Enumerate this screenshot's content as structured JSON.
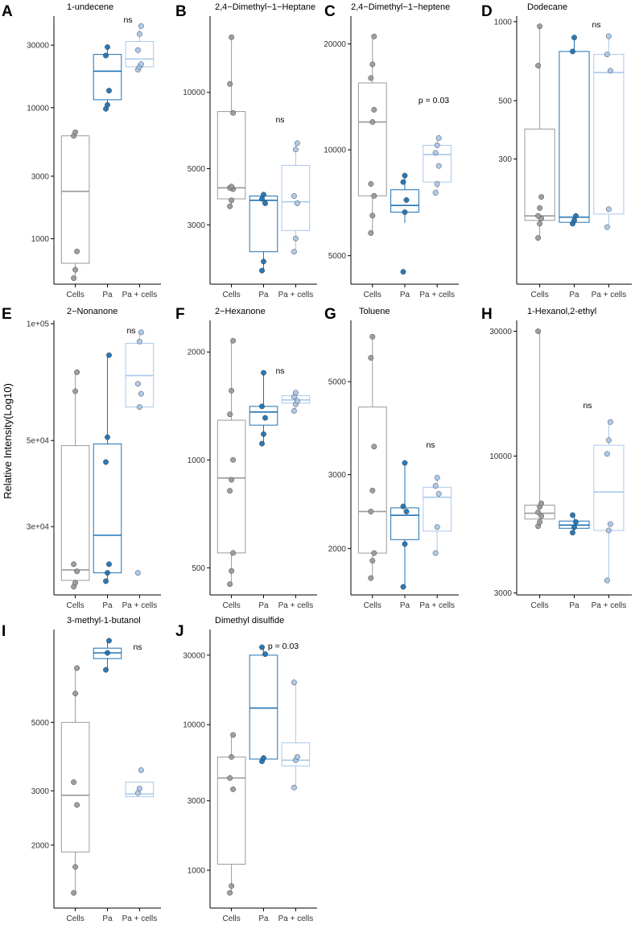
{
  "figure": {
    "ylabel": "Relative Intensity(Log10)",
    "groups": [
      "Cells",
      "Pa",
      "Pa + cells"
    ],
    "colors": {
      "Cells": "#9a9a9a",
      "Pa": "#1f72b4",
      "Pa + cells": "#a9c8ea",
      "axis": "#000000"
    }
  },
  "chart_data": [
    {
      "type": "box",
      "letter": "A",
      "title": "1-undecene",
      "scale": "log",
      "ylim": [
        450,
        50000
      ],
      "yticks": [
        1000,
        3000,
        10000,
        30000
      ],
      "ytick_labels": [
        "1000",
        "3000",
        "10000",
        "30000"
      ],
      "annotation": "ns",
      "boxes": [
        {
          "group": "Cells",
          "q1": 650,
          "median": 2300,
          "q3": 6100,
          "wmin": 500,
          "wmax": 6500,
          "points": [
            500,
            580,
            800,
            6100,
            6500
          ]
        },
        {
          "group": "Pa",
          "q1": 11500,
          "median": 19000,
          "q3": 25500,
          "wmin": 9800,
          "wmax": 29000,
          "points": [
            9800,
            10500,
            13500,
            25000,
            29000
          ]
        },
        {
          "group": "Pa + cells",
          "q1": 20500,
          "median": 23500,
          "q3": 32000,
          "wmin": 19500,
          "wmax": 42000,
          "points": [
            19500,
            20500,
            21500,
            27500,
            36500,
            42000
          ]
        }
      ]
    },
    {
      "type": "box",
      "letter": "B",
      "title": "2,4−Dimethyl−1−Heptane",
      "scale": "log",
      "ylim": [
        1750,
        20000
      ],
      "yticks": [
        3000,
        5000,
        10000
      ],
      "ytick_labels": [
        "3000",
        "5000",
        "10000"
      ],
      "annotation": "ns",
      "boxes": [
        {
          "group": "Cells",
          "q1": 3800,
          "median": 4200,
          "q3": 8400,
          "wmin": 3550,
          "wmax": 16500,
          "points": [
            3550,
            3750,
            4150,
            4200,
            4250,
            8300,
            10800,
            16500
          ]
        },
        {
          "group": "Pa",
          "q1": 2350,
          "median": 3750,
          "q3": 3900,
          "wmin": 1980,
          "wmax": 3950,
          "points": [
            1980,
            2150,
            3650,
            3800,
            3950
          ]
        },
        {
          "group": "Pa + cells",
          "q1": 2850,
          "median": 3700,
          "q3": 5150,
          "wmin": 2350,
          "wmax": 6300,
          "points": [
            2350,
            2650,
            3650,
            3900,
            5950,
            6300
          ]
        }
      ]
    },
    {
      "type": "box",
      "letter": "C",
      "title": "2,4−Dimethyl−1−heptene",
      "scale": "log",
      "ylim": [
        4150,
        24000
      ],
      "yticks": [
        5000,
        10000,
        20000
      ],
      "ytick_labels": [
        "5000",
        "10000",
        "20000"
      ],
      "annotation": "p = 0.03",
      "boxes": [
        {
          "group": "Cells",
          "q1": 7400,
          "median": 12000,
          "q3": 15500,
          "wmin": 5800,
          "wmax": 21000,
          "points": [
            5800,
            6500,
            7400,
            8000,
            12000,
            13000,
            16000,
            17500,
            21000
          ]
        },
        {
          "group": "Pa",
          "q1": 6650,
          "median": 6950,
          "q3": 7700,
          "wmin": 6200,
          "wmax": 8450,
          "points": [
            4500,
            6650,
            7200,
            8100,
            8450
          ]
        },
        {
          "group": "Pa + cells",
          "q1": 8100,
          "median": 9700,
          "q3": 10300,
          "wmin": 7550,
          "wmax": 10800,
          "points": [
            7550,
            8000,
            9000,
            9800,
            10300,
            10800
          ]
        }
      ]
    },
    {
      "type": "box",
      "letter": "D",
      "title": "Dodecane",
      "scale": "log",
      "ylim": [
        100,
        1050
      ],
      "yticks": [
        300,
        500,
        1000
      ],
      "ytick_labels": [
        "300",
        "500",
        "1000"
      ],
      "annotation": "ns",
      "boxes": [
        {
          "group": "Cells",
          "q1": 175,
          "median": 182,
          "q3": 390,
          "wmin": 150,
          "wmax": 960,
          "points": [
            150,
            170,
            178,
            182,
            195,
            215,
            680,
            960
          ]
        },
        {
          "group": "Pa",
          "q1": 172,
          "median": 180,
          "q3": 770,
          "wmin": 170,
          "wmax": 870,
          "points": [
            170,
            175,
            182,
            770,
            870
          ]
        },
        {
          "group": "Pa + cells",
          "q1": 185,
          "median": 640,
          "q3": 750,
          "wmin": 165,
          "wmax": 880,
          "points": [
            165,
            193,
            650,
            750,
            880
          ]
        }
      ]
    },
    {
      "type": "box",
      "letter": "E",
      "title": "2−Nonanone",
      "scale": "log",
      "ylim": [
        20000,
        102000
      ],
      "yticks": [
        30000,
        50000,
        100000
      ],
      "ytick_labels": [
        "3e+04",
        "5e+04",
        "1e+05"
      ],
      "annotation": "ns",
      "boxes": [
        {
          "group": "Cells",
          "q1": 21800,
          "median": 23200,
          "q3": 48500,
          "wmin": 21000,
          "wmax": 75000,
          "points": [
            21000,
            21500,
            23000,
            24000,
            67000,
            75000
          ]
        },
        {
          "group": "Pa",
          "q1": 22800,
          "median": 28500,
          "q3": 49000,
          "wmin": 21700,
          "wmax": 83000,
          "points": [
            21700,
            22800,
            24000,
            44000,
            51000,
            83000
          ]
        },
        {
          "group": "Pa + cells",
          "q1": 61000,
          "median": 73500,
          "q3": 89000,
          "wmin": 60000,
          "wmax": 95000,
          "points": [
            22800,
            61000,
            66000,
            70000,
            90000,
            95000
          ]
        }
      ]
    },
    {
      "type": "box",
      "letter": "F",
      "title": "2−Hexanone",
      "scale": "log",
      "ylim": [
        420,
        2450
      ],
      "yticks": [
        500,
        1000,
        2000
      ],
      "ytick_labels": [
        "500",
        "1000",
        "2000"
      ],
      "annotation": "ns",
      "boxes": [
        {
          "group": "Cells",
          "q1": 550,
          "median": 890,
          "q3": 1290,
          "wmin": 450,
          "wmax": 2150,
          "points": [
            450,
            490,
            550,
            820,
            880,
            1000,
            1340,
            1560,
            2150
          ]
        },
        {
          "group": "Pa",
          "q1": 1250,
          "median": 1360,
          "q3": 1410,
          "wmin": 1110,
          "wmax": 1750,
          "points": [
            1110,
            1180,
            1310,
            1410,
            1750
          ]
        },
        {
          "group": "Pa + cells",
          "q1": 1440,
          "median": 1470,
          "q3": 1510,
          "wmin": 1370,
          "wmax": 1540,
          "points": [
            1370,
            1430,
            1460,
            1500,
            1540
          ]
        }
      ]
    },
    {
      "type": "box",
      "letter": "G",
      "title": "Toluene",
      "scale": "log",
      "ylim": [
        1550,
        7000
      ],
      "yticks": [
        2000,
        3000,
        5000
      ],
      "ytick_labels": [
        "2000",
        "3000",
        "5000"
      ],
      "annotation": "ns",
      "boxes": [
        {
          "group": "Cells",
          "q1": 1950,
          "median": 2450,
          "q3": 4350,
          "wmin": 1700,
          "wmax": 6400,
          "points": [
            1700,
            1870,
            1950,
            2450,
            2750,
            3500,
            5700,
            6400
          ]
        },
        {
          "group": "Pa",
          "q1": 2100,
          "median": 2400,
          "q3": 2500,
          "wmin": 1620,
          "wmax": 3200,
          "points": [
            1620,
            2050,
            2450,
            2520,
            3200
          ]
        },
        {
          "group": "Pa + cells",
          "q1": 2200,
          "median": 2650,
          "q3": 2800,
          "wmin": 1950,
          "wmax": 2950,
          "points": [
            1950,
            2250,
            2700,
            2820,
            2950
          ]
        }
      ]
    },
    {
      "type": "box",
      "letter": "H",
      "title": "1-Hexanol,2-ethyl",
      "scale": "log",
      "ylim": [
        2950,
        33000
      ],
      "yticks": [
        3000,
        10000,
        30000
      ],
      "ytick_labels": [
        "3000",
        "10000",
        "30000"
      ],
      "annotation": "ns",
      "boxes": [
        {
          "group": "Cells",
          "q1": 5750,
          "median": 6050,
          "q3": 6500,
          "wmin": 5400,
          "wmax": 30000,
          "points": [
            5400,
            5600,
            5900,
            6100,
            6400,
            6600,
            30000
          ]
        },
        {
          "group": "Pa",
          "q1": 5300,
          "median": 5450,
          "q3": 5650,
          "wmin": 5100,
          "wmax": 5950,
          "points": [
            5100,
            5350,
            5600,
            5950
          ]
        },
        {
          "group": "Pa + cells",
          "q1": 5200,
          "median": 7300,
          "q3": 11000,
          "wmin": 3350,
          "wmax": 13500,
          "points": [
            3350,
            5200,
            5500,
            10200,
            11500,
            13500
          ]
        }
      ]
    },
    {
      "type": "box",
      "letter": "I",
      "title": "3-methyl-1-butanol",
      "scale": "log",
      "ylim": [
        1250,
        10000
      ],
      "yticks": [
        2000,
        3000,
        5000
      ],
      "ytick_labels": [
        "2000",
        "3000",
        "5000"
      ],
      "annotation": "ns",
      "boxes": [
        {
          "group": "Cells",
          "q1": 1900,
          "median": 2900,
          "q3": 5000,
          "wmin": 1400,
          "wmax": 7500,
          "points": [
            1400,
            1700,
            2700,
            3200,
            6200,
            7500
          ]
        },
        {
          "group": "Pa",
          "q1": 8050,
          "median": 8400,
          "q3": 8700,
          "wmin": 7400,
          "wmax": 9200,
          "points": [
            7400,
            8400,
            9200
          ]
        },
        {
          "group": "Pa + cells",
          "q1": 2870,
          "median": 2930,
          "q3": 3200,
          "wmin": 2870,
          "wmax": 3200,
          "points": [
            2950,
            3050,
            3500
          ]
        }
      ]
    },
    {
      "type": "box",
      "letter": "J",
      "title": "Dimethyl disulfide",
      "scale": "log",
      "ylim": [
        550,
        45000
      ],
      "yticks": [
        1000,
        3000,
        10000,
        30000
      ],
      "ytick_labels": [
        "1000",
        "3000",
        "10000",
        "30000"
      ],
      "annotation": "p = 0.03",
      "boxes": [
        {
          "group": "Cells",
          "q1": 1100,
          "median": 4300,
          "q3": 6000,
          "wmin": 700,
          "wmax": 8500,
          "points": [
            700,
            780,
            3600,
            4300,
            6000,
            8500
          ]
        },
        {
          "group": "Pa",
          "q1": 5800,
          "median": 13000,
          "q3": 30000,
          "wmin": 5600,
          "wmax": 34000,
          "points": [
            5600,
            5900,
            30500,
            34000
          ]
        },
        {
          "group": "Pa + cells",
          "q1": 5200,
          "median": 5700,
          "q3": 7500,
          "wmin": 3700,
          "wmax": 19500,
          "points": [
            3700,
            5700,
            6000,
            19500
          ]
        }
      ]
    }
  ]
}
